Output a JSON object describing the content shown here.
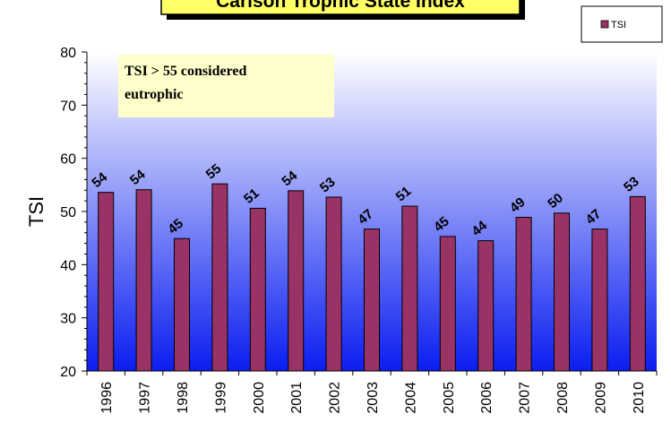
{
  "chart_data": {
    "type": "bar",
    "title": "Carlson Trophic State Index",
    "ylabel": "TSI",
    "xlabel": "",
    "ylim": [
      20,
      80
    ],
    "yticks": [
      20,
      30,
      40,
      50,
      60,
      70,
      80
    ],
    "categories": [
      "1996",
      "1997",
      "1998",
      "1999",
      "2000",
      "2001",
      "2002",
      "2003",
      "2004",
      "2005",
      "2006",
      "2007",
      "2008",
      "2009",
      "2010"
    ],
    "series": [
      {
        "name": "TSI",
        "values": [
          53.6,
          54.1,
          44.9,
          55.2,
          50.6,
          53.9,
          52.7,
          46.7,
          51.0,
          45.3,
          44.5,
          48.9,
          49.7,
          46.7,
          52.8
        ],
        "labels": [
          "54",
          "54",
          "45",
          "55",
          "51",
          "54",
          "53",
          "47",
          "51",
          "45",
          "44",
          "49",
          "50",
          "47",
          "53"
        ]
      }
    ],
    "legend": {
      "position": "top-right",
      "entries": [
        "TSI"
      ]
    },
    "annotation": {
      "lines": [
        "TSI > 55 considered",
        "eutrophic"
      ]
    },
    "grid": false,
    "colors": {
      "bar": "#993366",
      "plot_top": "#ffffff",
      "plot_bottom": "#0a1ef0",
      "title_bg": "#ffff66",
      "annotation_bg": "#ffffcc"
    }
  }
}
